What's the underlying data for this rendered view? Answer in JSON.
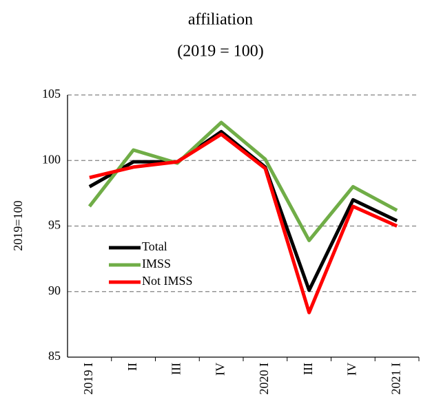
{
  "chart_data": {
    "type": "line",
    "title": "affiliation",
    "subtitle": "(2019 = 100)",
    "y_label": "2019=100",
    "categories": [
      "2019 I",
      "II",
      "III",
      "IV",
      "2020 I",
      "III",
      "IV",
      "2021 I"
    ],
    "series": [
      {
        "name": "Total",
        "color": "#000000",
        "values": [
          98.0,
          99.9,
          99.9,
          102.2,
          99.5,
          90.1,
          97.0,
          95.4
        ]
      },
      {
        "name": "IMSS",
        "color": "#70ad47",
        "values": [
          96.5,
          100.8,
          99.8,
          102.9,
          100.1,
          93.9,
          98.0,
          96.2
        ]
      },
      {
        "name": "Not IMSS",
        "color": "#ff0000",
        "values": [
          98.7,
          99.5,
          99.9,
          102.0,
          99.4,
          88.4,
          96.5,
          95.0
        ]
      }
    ],
    "ylim": [
      85,
      105
    ],
    "yticks": [
      85,
      90,
      95,
      100,
      105
    ],
    "grid": true,
    "legend": "left"
  }
}
